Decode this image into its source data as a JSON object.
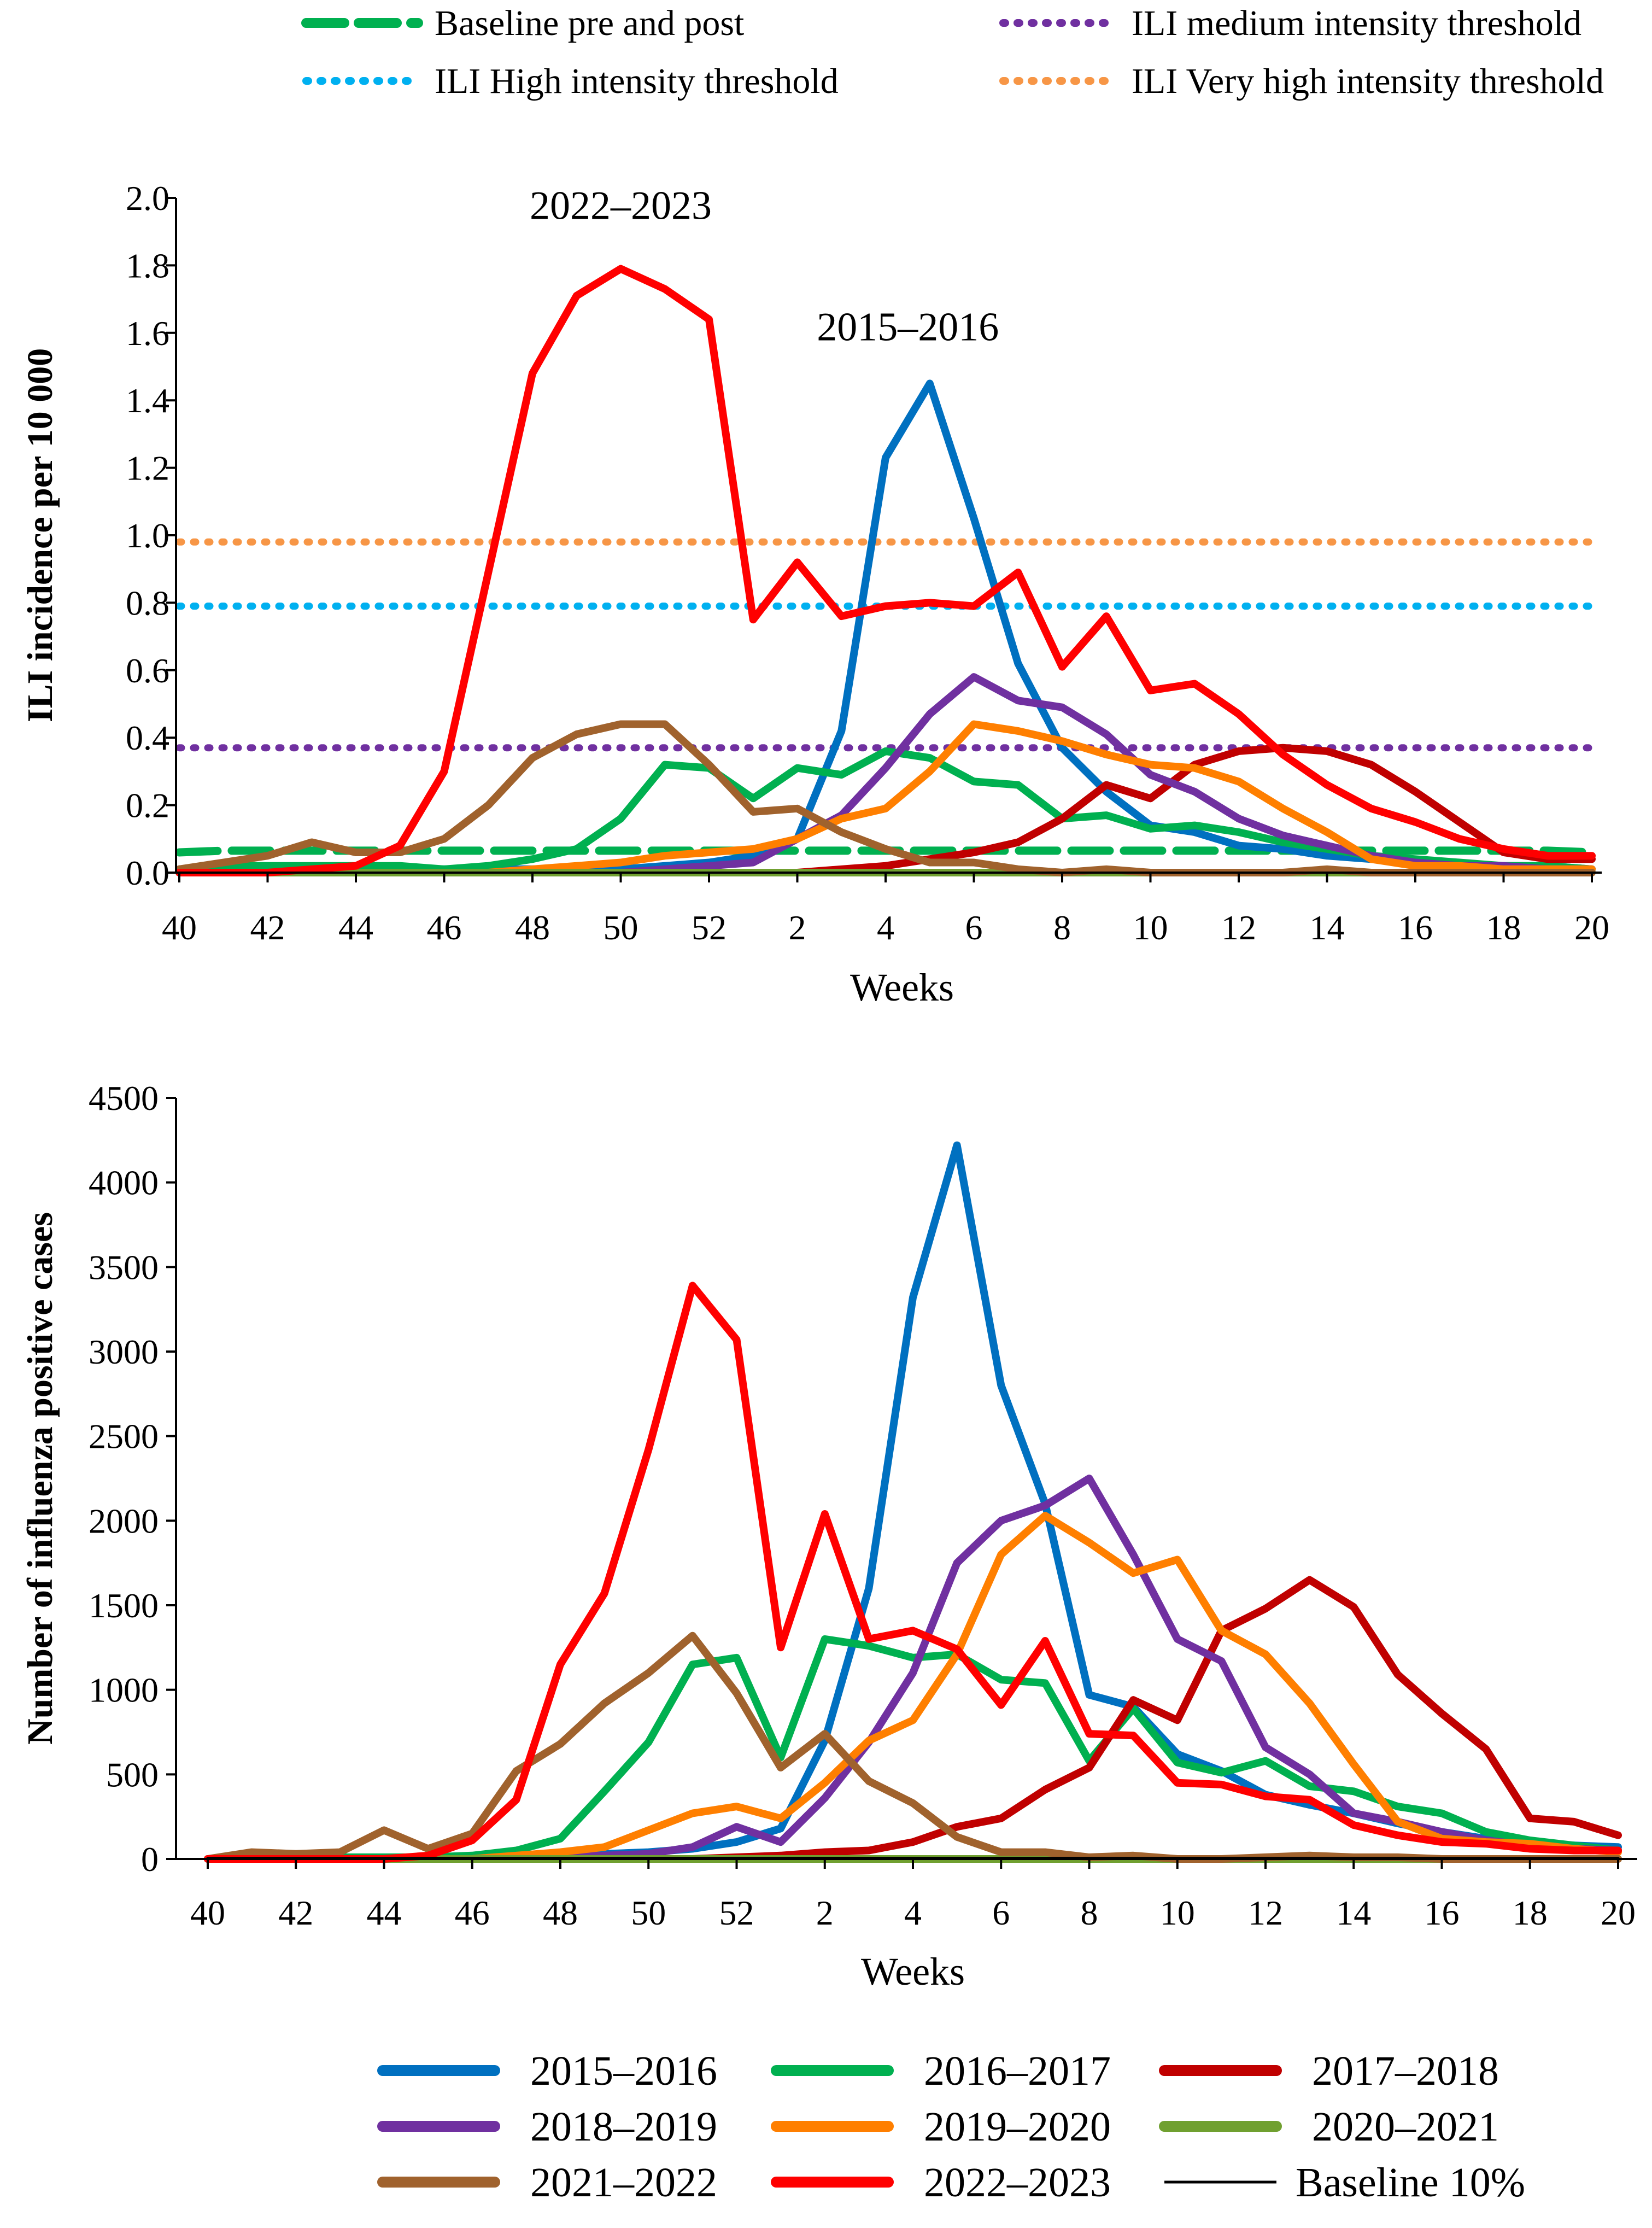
{
  "top_legend": {
    "entries": [
      {
        "label": "Baseline pre and post",
        "color": "#00B050",
        "dash": "dashed"
      },
      {
        "label": "ILI medium intensity threshold",
        "color": "#7030A0",
        "dash": "dotted"
      },
      {
        "label": "ILI High intensity threshold",
        "color": "#00B0F0",
        "dash": "dotted"
      },
      {
        "label": "ILI Very high intensity threshold",
        "color": "#F79646",
        "dash": "dotted"
      }
    ]
  },
  "bottom_legend": {
    "entries": [
      {
        "label": "2015–2016",
        "color": "#0070C0"
      },
      {
        "label": "2016–2017",
        "color": "#00B050"
      },
      {
        "label": "2017–2018",
        "color": "#C00000"
      },
      {
        "label": "2018–2019",
        "color": "#7030A0"
      },
      {
        "label": "2019–2020",
        "color": "#FF7F00"
      },
      {
        "label": "2020–2021",
        "color": "#70A030"
      },
      {
        "label": "2021–2022",
        "color": "#A0622D"
      },
      {
        "label": "2022–2023",
        "color": "#FF0000"
      },
      {
        "label": "Baseline 10%",
        "color": "#000000"
      }
    ]
  },
  "chart_data": [
    {
      "type": "line",
      "title": "",
      "xlabel": "Weeks",
      "ylabel": "ILI incidence per 10 000",
      "ylim": [
        0,
        2.0
      ],
      "yticks": [
        "0.0",
        "0.2",
        "0.4",
        "0.6",
        "0.8",
        "1.0",
        "1.2",
        "1.4",
        "1.6",
        "1.8",
        "2.0"
      ],
      "grid": false,
      "categories": [
        "40",
        "41",
        "42",
        "43",
        "44",
        "45",
        "46",
        "47",
        "48",
        "49",
        "50",
        "51",
        "52",
        "1",
        "2",
        "3",
        "4",
        "5",
        "6",
        "7",
        "8",
        "9",
        "10",
        "11",
        "12",
        "13",
        "14",
        "15",
        "16",
        "17",
        "18",
        "19",
        "20"
      ],
      "xtick_labels": [
        "40",
        "42",
        "44",
        "46",
        "48",
        "50",
        "52",
        "2",
        "4",
        "6",
        "8",
        "10",
        "12",
        "14",
        "16",
        "18",
        "20"
      ],
      "annotations": [
        {
          "text": "2022–2023",
          "x_category": "50",
          "y": 1.98
        },
        {
          "text": "2015–2016",
          "x_category": "5",
          "y": 1.62
        }
      ],
      "thresholds": [
        {
          "name": "ILI Very high intensity threshold",
          "value": 0.98,
          "color": "#F79646",
          "dash": "dotted"
        },
        {
          "name": "ILI High intensity threshold",
          "value": 0.79,
          "color": "#00B0F0",
          "dash": "dotted"
        },
        {
          "name": "ILI medium intensity threshold",
          "value": 0.37,
          "color": "#7030A0",
          "dash": "dotted"
        },
        {
          "name": "Baseline pre and post",
          "values": [
            0.06,
            0.065,
            0.065,
            0.065,
            0.065,
            0.065,
            0.065,
            0.065,
            0.065,
            0.065,
            0.065,
            0.065,
            0.065,
            0.065,
            0.065,
            0.065,
            0.065,
            0.065,
            0.065,
            0.065,
            0.065,
            0.065,
            0.065,
            0.065,
            0.065,
            0.065,
            0.065,
            0.065,
            0.065,
            0.065,
            0.065,
            0.065,
            0.06
          ],
          "color": "#00B050",
          "dash": "dashed"
        }
      ],
      "series": [
        {
          "name": "2015–2016",
          "color": "#0070C0",
          "values": [
            0.01,
            0.01,
            0.01,
            0.01,
            0.01,
            0.01,
            0.01,
            0.01,
            0.01,
            0.01,
            0.01,
            0.02,
            0.03,
            0.05,
            0.1,
            0.42,
            1.23,
            1.45,
            1.05,
            0.62,
            0.37,
            0.24,
            0.14,
            0.12,
            0.08,
            0.07,
            0.05,
            0.04,
            0.03,
            0.02,
            0.02,
            0.02,
            0.01
          ]
        },
        {
          "name": "2016–2017",
          "color": "#00B050",
          "values": [
            0.01,
            0.02,
            0.02,
            0.02,
            0.02,
            0.02,
            0.01,
            0.02,
            0.04,
            0.07,
            0.16,
            0.32,
            0.31,
            0.22,
            0.31,
            0.29,
            0.36,
            0.34,
            0.27,
            0.26,
            0.16,
            0.17,
            0.13,
            0.14,
            0.12,
            0.09,
            0.07,
            0.05,
            0.04,
            0.03,
            0.02,
            0.02,
            0.01
          ]
        },
        {
          "name": "2017–2018",
          "color": "#C00000",
          "values": [
            0.0,
            0.0,
            0.0,
            0.0,
            0.0,
            0.0,
            0.0,
            0.0,
            0.0,
            0.0,
            0.0,
            0.0,
            0.0,
            0.0,
            0.0,
            0.01,
            0.02,
            0.04,
            0.06,
            0.09,
            0.16,
            0.26,
            0.22,
            0.32,
            0.36,
            0.37,
            0.36,
            0.32,
            0.24,
            0.15,
            0.06,
            0.04,
            0.04
          ]
        },
        {
          "name": "2018–2019",
          "color": "#7030A0",
          "values": [
            0.0,
            0.0,
            0.0,
            0.0,
            0.0,
            0.0,
            0.0,
            0.0,
            0.0,
            0.0,
            0.0,
            0.01,
            0.02,
            0.03,
            0.1,
            0.17,
            0.31,
            0.47,
            0.58,
            0.51,
            0.49,
            0.41,
            0.29,
            0.24,
            0.16,
            0.11,
            0.08,
            0.05,
            0.03,
            0.02,
            0.02,
            0.01,
            0.01
          ]
        },
        {
          "name": "2019–2020",
          "color": "#FF7F00",
          "values": [
            0.0,
            0.0,
            0.0,
            0.0,
            0.0,
            0.0,
            0.0,
            0.0,
            0.01,
            0.02,
            0.03,
            0.05,
            0.06,
            0.07,
            0.1,
            0.16,
            0.19,
            0.3,
            0.44,
            0.42,
            0.39,
            0.35,
            0.32,
            0.31,
            0.27,
            0.19,
            0.12,
            0.04,
            0.02,
            0.02,
            0.01,
            0.01,
            0.01
          ]
        },
        {
          "name": "2020–2021",
          "color": "#70A030",
          "values": [
            0.0,
            0.0,
            0.0,
            0.0,
            0.0,
            0.0,
            0.0,
            0.0,
            0.0,
            0.0,
            0.0,
            0.0,
            0.0,
            0.0,
            0.0,
            0.0,
            0.0,
            0.0,
            0.0,
            0.0,
            0.0,
            0.0,
            0.0,
            0.0,
            0.0,
            0.0,
            0.0,
            0.0,
            0.0,
            0.0,
            0.0,
            0.0,
            0.0
          ]
        },
        {
          "name": "2021–2022",
          "color": "#A0622D",
          "values": [
            0.01,
            0.03,
            0.05,
            0.09,
            0.06,
            0.06,
            0.1,
            0.2,
            0.34,
            0.41,
            0.44,
            0.44,
            0.32,
            0.18,
            0.19,
            0.12,
            0.07,
            0.03,
            0.03,
            0.01,
            0.0,
            0.01,
            0.0,
            0.0,
            0.0,
            0.0,
            0.01,
            0.0,
            0.0,
            0.0,
            0.0,
            0.0,
            0.0
          ]
        },
        {
          "name": "2022–2023",
          "color": "#FF0000",
          "values": [
            0.0,
            0.0,
            0.0,
            0.01,
            0.02,
            0.08,
            0.3,
            0.89,
            1.48,
            1.71,
            1.79,
            1.73,
            1.64,
            0.75,
            0.92,
            0.76,
            0.79,
            0.8,
            0.79,
            0.89,
            0.61,
            0.76,
            0.54,
            0.56,
            0.47,
            0.35,
            0.26,
            0.19,
            0.15,
            0.1,
            0.07,
            0.05,
            0.05
          ]
        }
      ]
    },
    {
      "type": "line",
      "title": "",
      "xlabel": "Weeks",
      "ylabel": "Number of influenza positive cases",
      "ylim": [
        0,
        4500
      ],
      "yticks": [
        "0",
        "500",
        "1000",
        "1500",
        "2000",
        "2500",
        "3000",
        "3500",
        "4000",
        "4500"
      ],
      "grid": false,
      "categories": [
        "40",
        "41",
        "42",
        "43",
        "44",
        "45",
        "46",
        "47",
        "48",
        "49",
        "50",
        "51",
        "52",
        "1",
        "2",
        "3",
        "4",
        "5",
        "6",
        "7",
        "8",
        "9",
        "10",
        "11",
        "12",
        "13",
        "14",
        "15",
        "16",
        "17",
        "18",
        "19",
        "20"
      ],
      "xtick_labels": [
        "40",
        "42",
        "44",
        "46",
        "48",
        "50",
        "52",
        "2",
        "4",
        "6",
        "8",
        "10",
        "12",
        "14",
        "16",
        "18",
        "20"
      ],
      "series": [
        {
          "name": "2015–2016",
          "color": "#0070C0",
          "values": [
            0,
            0,
            0,
            0,
            0,
            0,
            0,
            10,
            20,
            30,
            40,
            60,
            100,
            180,
            700,
            1600,
            3320,
            4220,
            2800,
            2100,
            970,
            900,
            620,
            520,
            380,
            320,
            270,
            210,
            160,
            120,
            90,
            80,
            70
          ]
        },
        {
          "name": "2016–2017",
          "color": "#00B050",
          "values": [
            0,
            0,
            10,
            10,
            10,
            10,
            20,
            50,
            120,
            400,
            690,
            1150,
            1190,
            600,
            1300,
            1260,
            1190,
            1210,
            1060,
            1040,
            580,
            890,
            570,
            510,
            580,
            430,
            400,
            310,
            270,
            160,
            110,
            80,
            50
          ]
        },
        {
          "name": "2017–2018",
          "color": "#C00000",
          "values": [
            0,
            0,
            0,
            0,
            0,
            0,
            0,
            0,
            0,
            0,
            0,
            0,
            10,
            20,
            40,
            50,
            100,
            190,
            240,
            410,
            540,
            940,
            820,
            1350,
            1480,
            1650,
            1490,
            1090,
            860,
            650,
            240,
            220,
            140
          ]
        },
        {
          "name": "2018–2019",
          "color": "#7030A0",
          "values": [
            0,
            0,
            0,
            0,
            0,
            0,
            0,
            0,
            10,
            20,
            30,
            70,
            190,
            100,
            360,
            690,
            1100,
            1750,
            2000,
            2090,
            2250,
            1800,
            1300,
            1170,
            660,
            500,
            270,
            220,
            160,
            110,
            80,
            60,
            50
          ]
        },
        {
          "name": "2019–2020",
          "color": "#FF7F00",
          "values": [
            0,
            0,
            0,
            0,
            0,
            0,
            0,
            20,
            40,
            70,
            170,
            270,
            310,
            240,
            450,
            700,
            820,
            1210,
            1800,
            2030,
            1870,
            1690,
            1770,
            1350,
            1210,
            920,
            560,
            220,
            120,
            100,
            90,
            60,
            40
          ]
        },
        {
          "name": "2020–2021",
          "color": "#70A030",
          "values": [
            0,
            0,
            0,
            0,
            0,
            0,
            0,
            0,
            0,
            0,
            0,
            0,
            0,
            0,
            0,
            0,
            0,
            0,
            0,
            0,
            0,
            0,
            0,
            0,
            0,
            0,
            0,
            0,
            0,
            0,
            0,
            0,
            0
          ]
        },
        {
          "name": "2021–2022",
          "color": "#A0622D",
          "values": [
            0,
            40,
            30,
            40,
            170,
            60,
            150,
            520,
            680,
            920,
            1100,
            1320,
            980,
            540,
            740,
            460,
            330,
            130,
            40,
            40,
            10,
            20,
            0,
            0,
            10,
            20,
            10,
            10,
            0,
            0,
            0,
            0,
            0
          ]
        },
        {
          "name": "2022–2023",
          "color": "#FF0000",
          "values": [
            0,
            0,
            0,
            0,
            0,
            20,
            110,
            350,
            1150,
            1570,
            2420,
            3390,
            3070,
            1250,
            2040,
            1300,
            1350,
            1240,
            910,
            1290,
            740,
            730,
            450,
            440,
            370,
            350,
            200,
            140,
            100,
            90,
            60,
            50,
            50
          ]
        },
        {
          "name": "Baseline 10%",
          "color": "#000000",
          "values": [
            5,
            5,
            5,
            5,
            5,
            5,
            5,
            5,
            5,
            5,
            5,
            5,
            5,
            5,
            5,
            5,
            5,
            5,
            5,
            5,
            5,
            5,
            5,
            5,
            5,
            5,
            5,
            5,
            5,
            5,
            5,
            5,
            5
          ]
        }
      ]
    }
  ]
}
